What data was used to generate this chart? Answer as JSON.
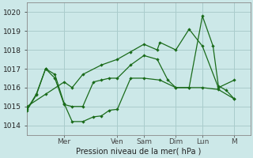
{
  "background_color": "#cce8e8",
  "grid_color": "#aacccc",
  "line_color": "#1a6b1a",
  "xlabel": "Pression niveau de la mer( hPa )",
  "ylim": [
    1013.5,
    1020.5
  ],
  "yticks": [
    1014,
    1015,
    1016,
    1017,
    1018,
    1019,
    1020
  ],
  "xlim": [
    0,
    8.4
  ],
  "day_labels": [
    "Mer",
    "Ven",
    "Sam",
    "Dim",
    "Lun",
    "M"
  ],
  "day_positions": [
    1.4,
    3.4,
    4.4,
    5.6,
    6.6,
    7.8
  ],
  "series1_x": [
    0.0,
    0.7,
    1.4,
    1.7,
    2.1,
    2.8,
    3.4,
    3.9,
    4.4,
    4.9,
    5.0,
    5.6,
    6.1,
    6.6,
    7.2,
    7.8
  ],
  "series1_y": [
    1015.0,
    1015.65,
    1016.3,
    1016.0,
    1016.7,
    1017.2,
    1017.5,
    1017.9,
    1018.3,
    1018.0,
    1018.4,
    1018.0,
    1019.1,
    1018.2,
    1016.0,
    1016.4
  ],
  "series2_x": [
    0.0,
    0.35,
    0.7,
    1.05,
    1.4,
    1.7,
    2.1,
    2.5,
    2.8,
    3.1,
    3.4,
    3.9,
    4.4,
    4.9,
    5.3,
    5.6,
    6.1,
    6.6,
    7.0,
    7.2,
    7.5,
    7.8
  ],
  "series2_y": [
    1014.8,
    1015.6,
    1017.0,
    1016.5,
    1015.1,
    1015.0,
    1015.0,
    1016.3,
    1016.4,
    1016.5,
    1016.5,
    1017.2,
    1017.7,
    1017.5,
    1016.4,
    1016.0,
    1016.0,
    1019.8,
    1018.2,
    1016.1,
    1015.85,
    1015.4
  ],
  "series3_x": [
    0.0,
    0.35,
    0.7,
    1.05,
    1.4,
    1.7,
    2.1,
    2.5,
    2.8,
    3.1,
    3.4,
    3.9,
    4.4,
    5.0,
    5.6,
    6.1,
    6.6,
    7.2,
    7.8
  ],
  "series3_y": [
    1014.85,
    1015.65,
    1017.0,
    1016.7,
    1015.15,
    1014.2,
    1014.2,
    1014.45,
    1014.5,
    1014.8,
    1014.85,
    1016.5,
    1016.5,
    1016.4,
    1016.0,
    1016.0,
    1016.0,
    1015.9,
    1015.4
  ]
}
